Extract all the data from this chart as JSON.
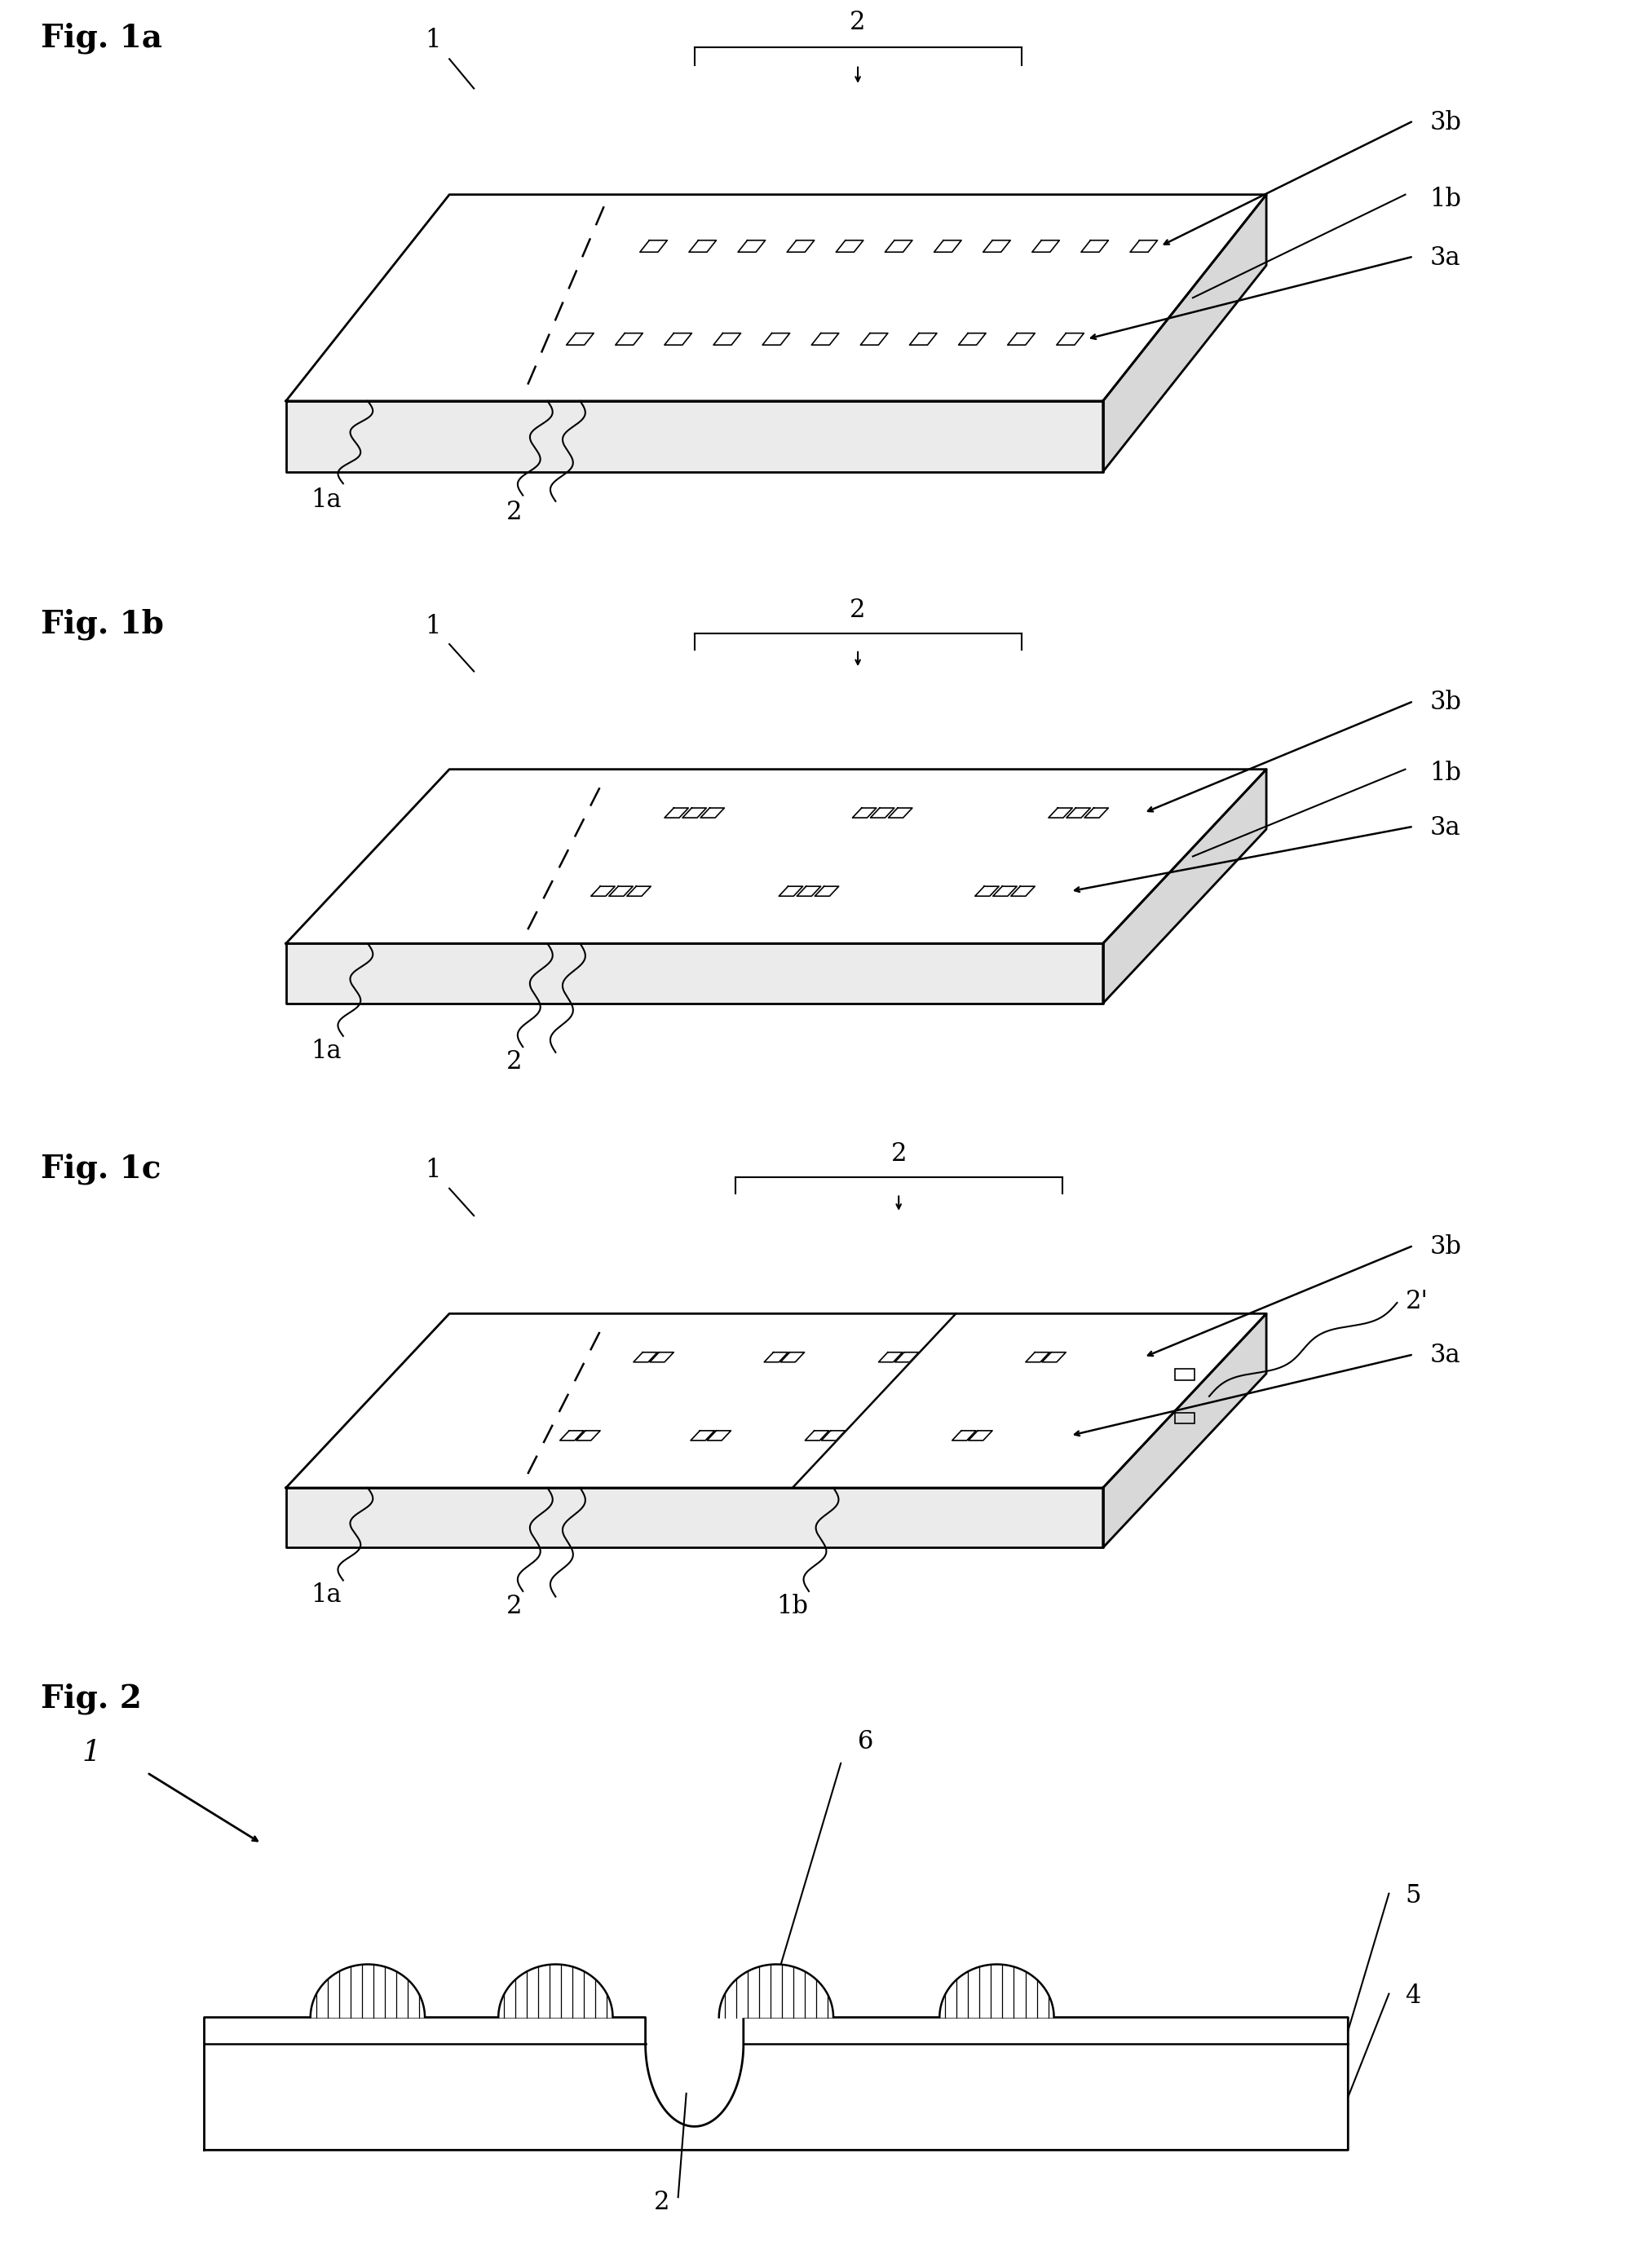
{
  "background_color": "#ffffff",
  "line_color": "#000000",
  "fig_labels": [
    "Fig. 1a",
    "Fig. 1b",
    "Fig. 1c",
    "Fig. 2"
  ]
}
